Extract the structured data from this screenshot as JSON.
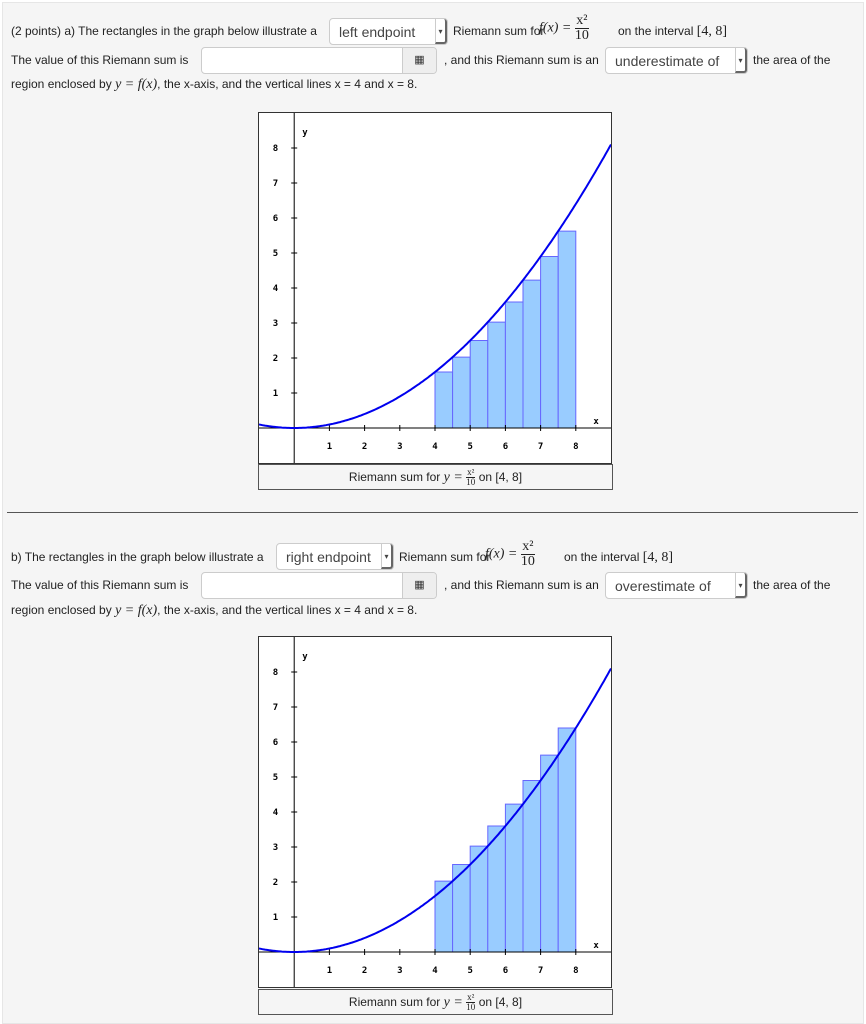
{
  "function_text": "f(x) =",
  "fraction": {
    "num": "x²",
    "den": "10"
  },
  "interval": "[4, 8]",
  "part_a": {
    "prefix": "(2 points) a) The rectangles in the graph below illustrate a",
    "method_select": "left endpoint",
    "riemann_for": "Riemann sum for",
    "on_interval": "on the interval",
    "value_label": "The value of this Riemann sum is",
    "value_input": "",
    "and_text": ", and this Riemann sum is an",
    "estimate_select": "underestimate of",
    "area_text": "the area of the",
    "region_text": "region enclosed by",
    "region_eq": "y = f(x)",
    "region_rest": ", the x-axis, and the vertical lines x = 4 and x = 8."
  },
  "part_b": {
    "prefix": "b) The rectangles in the graph below illustrate a",
    "method_select": "right endpoint",
    "riemann_for": "Riemann sum for",
    "on_interval": "on the interval",
    "value_label": "The value of this Riemann sum is",
    "value_input": "",
    "and_text": ", and this Riemann sum is an",
    "estimate_select": "overestimate of",
    "area_text": "the area of the",
    "region_text": "region enclosed by",
    "region_eq": "y = f(x)",
    "region_rest": ", the x-axis, and the vertical lines x = 4 and x = 8."
  },
  "caption": {
    "prefix": "Riemann sum for",
    "eq": "y =",
    "suffix": "on [4, 8]"
  },
  "icons": {
    "keypad": "keypad-icon",
    "dropdown": "caret-down-icon"
  },
  "colors": {
    "curve": "#0000ee",
    "rect_fill": "#99ccff",
    "rect_stroke": "#6666ff"
  },
  "chart_data": [
    {
      "type": "bar",
      "xlabel": "x",
      "ylabel": "y",
      "xlim": [
        -1,
        9
      ],
      "ylim": [
        -1,
        9
      ],
      "xticks": [
        1,
        2,
        3,
        4,
        5,
        6,
        7,
        8
      ],
      "yticks": [
        1,
        2,
        3,
        4,
        5,
        6,
        7,
        8
      ],
      "function": "x^2/10",
      "rule": "left",
      "edges": [
        4,
        4.5,
        5,
        5.5,
        6,
        6.5,
        7,
        7.5,
        8
      ],
      "values": [
        1.6,
        2.025,
        2.5,
        3.025,
        3.6,
        4.225,
        4.9,
        5.625
      ]
    },
    {
      "type": "bar",
      "xlabel": "x",
      "ylabel": "y",
      "xlim": [
        -1,
        9
      ],
      "ylim": [
        -1,
        9
      ],
      "xticks": [
        1,
        2,
        3,
        4,
        5,
        6,
        7,
        8
      ],
      "yticks": [
        1,
        2,
        3,
        4,
        5,
        6,
        7,
        8
      ],
      "function": "x^2/10",
      "rule": "right",
      "edges": [
        4,
        4.5,
        5,
        5.5,
        6,
        6.5,
        7,
        7.5,
        8
      ],
      "values": [
        2.025,
        2.5,
        3.025,
        3.6,
        4.225,
        4.9,
        5.625,
        6.4
      ]
    }
  ]
}
